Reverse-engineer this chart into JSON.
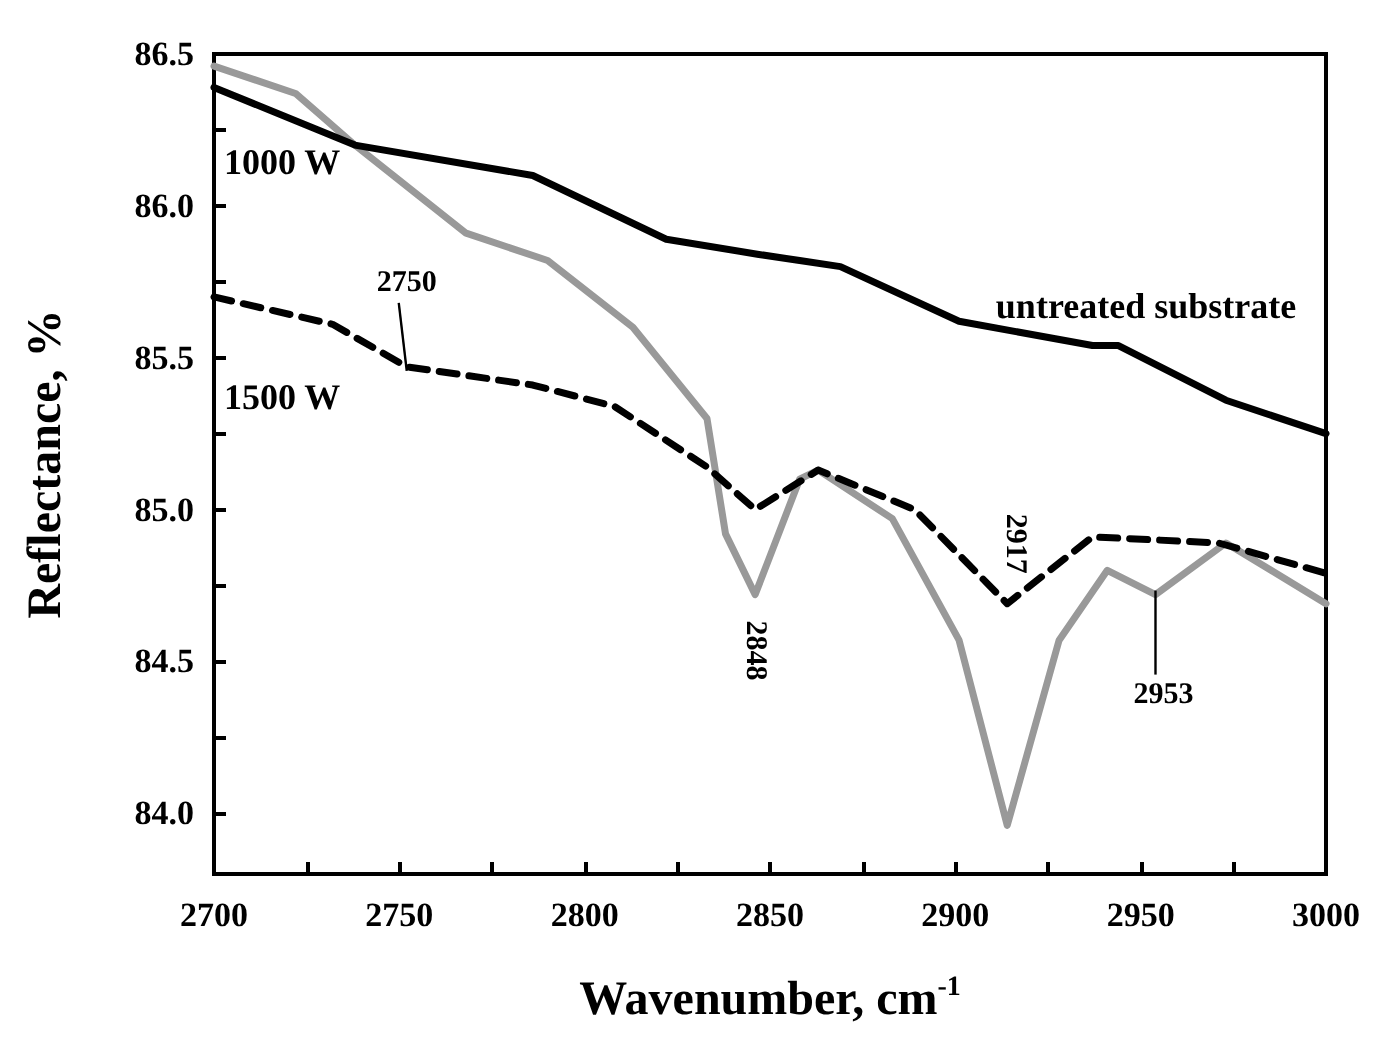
{
  "chart_data": {
    "type": "line",
    "xlabel": "Wavenumber, cm$^{-1}$",
    "ylabel": "Reflectance, %",
    "xlim": [
      2700,
      3000
    ],
    "xticks": [
      2700,
      {
        "value": 2725,
        "label": null
      },
      2750,
      {
        "value": 2775,
        "label": null
      },
      2800,
      {
        "value": 2825,
        "label": null
      },
      2850,
      {
        "value": 2875,
        "label": null
      },
      2900,
      {
        "value": 2925,
        "label": null
      },
      2950,
      {
        "value": 2975,
        "label": null
      },
      3000
    ],
    "ylim": [
      83.8,
      86.5
    ],
    "yticks": [
      {
        "value": 84,
        "label": "84.0"
      },
      {
        "value": 84.25,
        "label": null
      },
      {
        "value": 84.5,
        "label": "84.5"
      },
      {
        "value": 84.75,
        "label": null
      },
      {
        "value": 85,
        "label": "85.0"
      },
      {
        "value": 85.25,
        "label": null
      },
      {
        "value": 85.5,
        "label": "85.5"
      },
      {
        "value": 85.75,
        "label": null
      },
      {
        "value": 86,
        "label": "86.0"
      },
      {
        "value": 86.25,
        "label": null
      },
      {
        "value": 86.5,
        "label": "86.5"
      }
    ],
    "grid": false,
    "legend": false,
    "marker": "none",
    "series": [
      {
        "name": "untreated substrate",
        "color": "#000000",
        "line_style": "solid",
        "x": [
          2700,
          2738,
          2786,
          2822,
          2847,
          2858,
          2869,
          2901,
          2937,
          2944,
          2973,
          3000
        ],
        "values": [
          86.39,
          86.2,
          86.1,
          85.89,
          85.84,
          85.82,
          85.8,
          85.62,
          85.54,
          85.54,
          85.36,
          85.25
        ]
      },
      {
        "name": "1000 W",
        "color": "#999999",
        "line_style": "solid",
        "x": [
          2700,
          2722,
          2738,
          2768,
          2790,
          2813,
          2833,
          2838,
          2846,
          2858,
          2863,
          2883,
          2901,
          2914,
          2928,
          2941,
          2954,
          2973,
          3000
        ],
        "values": [
          86.46,
          86.37,
          86.2,
          85.91,
          85.82,
          85.6,
          85.3,
          84.92,
          84.72,
          85.1,
          85.13,
          84.97,
          84.57,
          83.96,
          84.57,
          84.8,
          84.72,
          84.89,
          84.69
        ]
      },
      {
        "name": "1500 W",
        "color": "#000000",
        "line_style": "dashed",
        "x": [
          2700,
          2732,
          2752,
          2786,
          2808,
          2833,
          2846,
          2863,
          2889,
          2914,
          2937,
          2971,
          3000
        ],
        "values": [
          85.7,
          85.61,
          85.47,
          85.41,
          85.34,
          85.14,
          85.0,
          85.13,
          85.0,
          84.69,
          84.91,
          84.89,
          84.79
        ]
      }
    ],
    "annotations": [
      {
        "text": "2750",
        "x": 2752,
        "y": 85.47
      },
      {
        "text": "2848",
        "x": 2846,
        "y": 84.72
      },
      {
        "text": "2917",
        "x": 2914,
        "y": 84.69
      },
      {
        "text": "2953",
        "x": 2954,
        "y": 84.72
      }
    ]
  }
}
